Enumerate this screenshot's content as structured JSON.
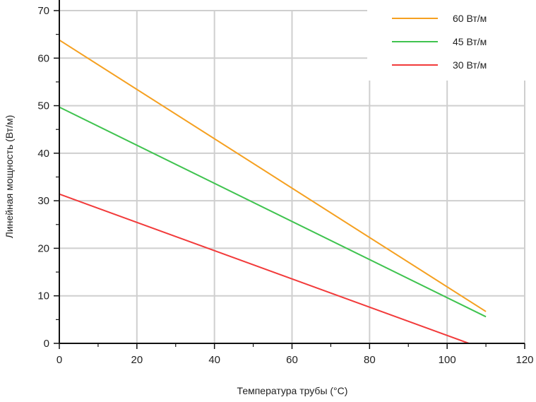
{
  "chart_data": {
    "type": "line",
    "title": "",
    "xlabel": "Температура трубы (°C)",
    "ylabel": "Линейная мощность (Вт/м)",
    "xlim": [
      0,
      120
    ],
    "ylim": [
      0,
      70
    ],
    "xticks": [
      0,
      20,
      40,
      60,
      80,
      100,
      120
    ],
    "yticks": [
      0,
      10,
      20,
      30,
      40,
      50,
      60,
      70
    ],
    "grid": true,
    "legend_position": "top-right",
    "series": [
      {
        "name": "60 Вт/м",
        "color": "#f5a020",
        "x": [
          0,
          110
        ],
        "y": [
          63.8,
          6.7
        ]
      },
      {
        "name": "45 Вт/м",
        "color": "#3fc34f",
        "x": [
          0,
          110
        ],
        "y": [
          49.7,
          5.6
        ]
      },
      {
        "name": "30 Вт/м",
        "color": "#f23a3a",
        "x": [
          0,
          105.6
        ],
        "y": [
          31.4,
          0
        ]
      }
    ]
  }
}
